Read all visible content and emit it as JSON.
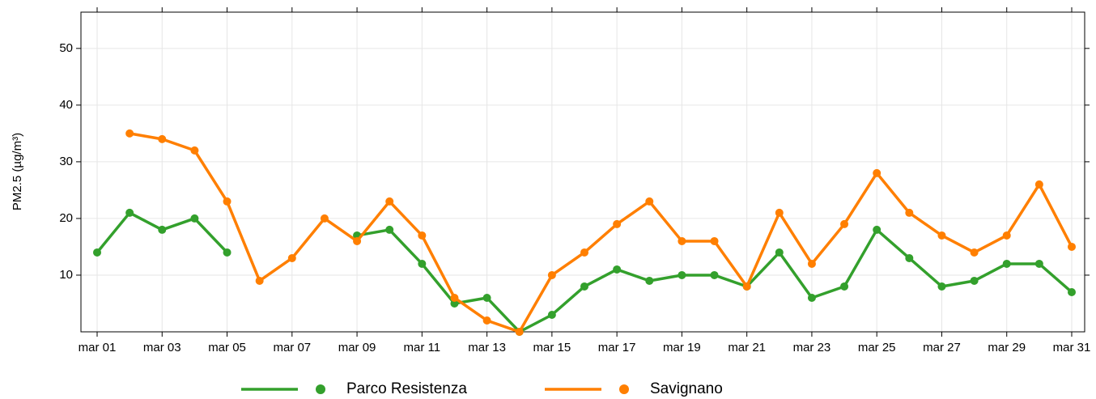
{
  "chart_data": {
    "type": "line",
    "y_label": "PM2.5 (µg/m³)",
    "categories": [
      "mar 01",
      null,
      "mar 03",
      null,
      "mar 05",
      null,
      "mar 07",
      null,
      "mar 09",
      null,
      "mar 11",
      null,
      "mar 13",
      null,
      "mar 15",
      null,
      "mar 17",
      null,
      "mar 19",
      null,
      "mar 21",
      null,
      "mar 23",
      null,
      "mar 25",
      null,
      "mar 27",
      null,
      "mar 29",
      null,
      "mar 31"
    ],
    "series": [
      {
        "name": "Parco Resistenza",
        "color": "#33a02c",
        "values": [
          14,
          21,
          18,
          20,
          14,
          null,
          null,
          null,
          17,
          18,
          12,
          5,
          6,
          0,
          3,
          8,
          11,
          9,
          10,
          10,
          8,
          14,
          6,
          8,
          18,
          13,
          8,
          9,
          12,
          12,
          7
        ]
      },
      {
        "name": "Savignano",
        "color": "#ff7f00",
        "values": [
          null,
          35,
          34,
          32,
          23,
          9,
          13,
          20,
          16,
          23,
          17,
          6,
          2,
          0,
          10,
          14,
          19,
          23,
          16,
          16,
          8,
          21,
          12,
          19,
          28,
          21,
          17,
          14,
          17,
          26,
          15
        ]
      }
    ],
    "ylim": [
      0,
      56.4
    ],
    "yticks": [
      10,
      20,
      30,
      40,
      50
    ],
    "grid": true,
    "legend": "bottom"
  }
}
